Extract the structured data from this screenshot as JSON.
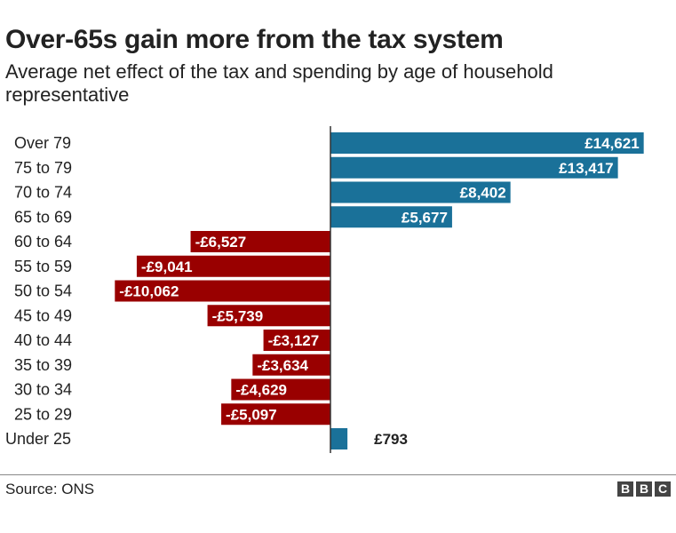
{
  "chart_data": {
    "type": "bar",
    "orientation": "horizontal",
    "title": "Over-65s gain more from the tax system",
    "subtitle": "Average net effect of the tax and spending by age of household representative",
    "categories": [
      "Over 79",
      "75 to 79",
      "70 to 74",
      "65 to 69",
      "60 to 64",
      "55 to 59",
      "50 to 54",
      "45 to 49",
      "40 to 44",
      "35 to 39",
      "30 to 34",
      "25 to 29",
      "Under 25"
    ],
    "values": [
      14621,
      13417,
      8402,
      5677,
      -6527,
      -9041,
      -10062,
      -5739,
      -3127,
      -3634,
      -4629,
      -5097,
      793
    ],
    "value_labels": [
      "£14,621",
      "£13,417",
      "£8,402",
      "£5,677",
      "-£6,527",
      "-£9,041",
      "-£10,062",
      "-£5,739",
      "-£3,127",
      "-£3,634",
      "-£4,629",
      "-£5,097",
      "£793"
    ],
    "xlim": [
      -10062,
      14621
    ],
    "colors": {
      "positive": "#1a7199",
      "negative": "#990000"
    },
    "grid": false,
    "legend": "none"
  },
  "source": "Source: ONS",
  "logo": [
    "B",
    "B",
    "C"
  ]
}
